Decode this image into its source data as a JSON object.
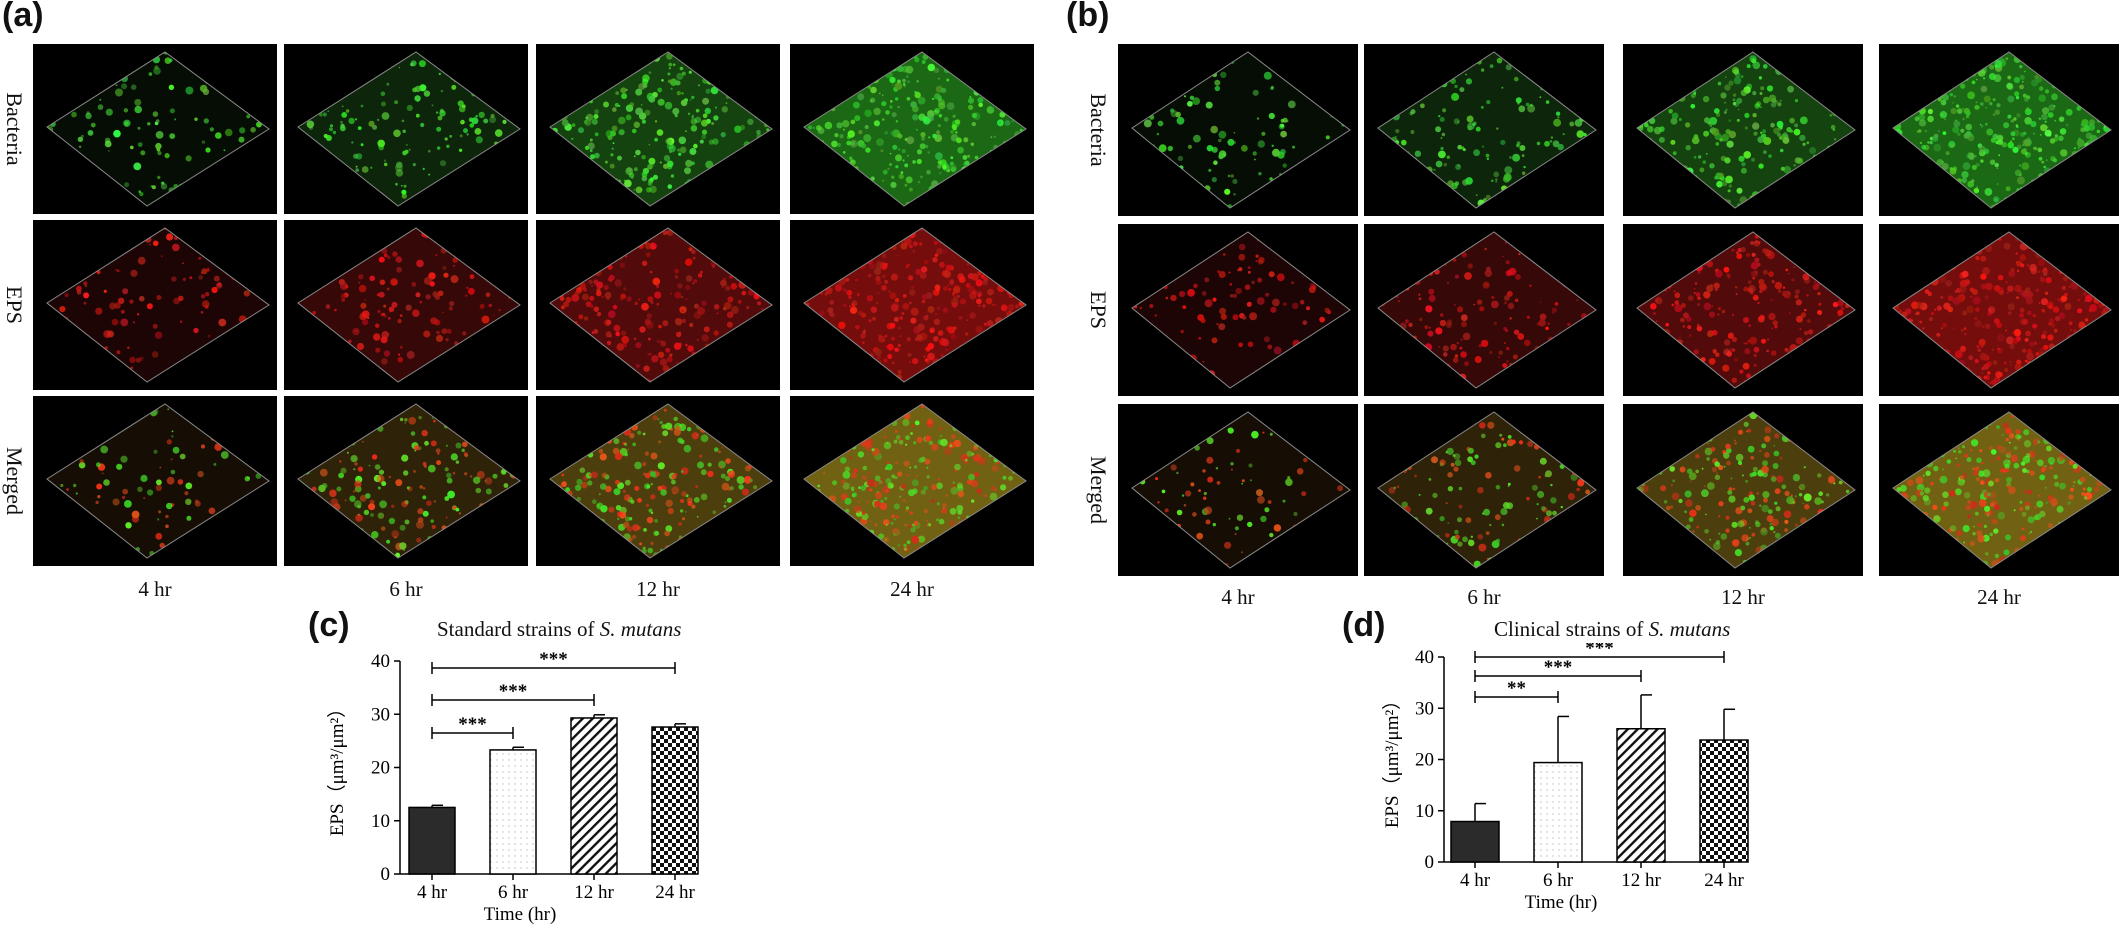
{
  "panels": [
    {
      "letter": "(a)",
      "rows": [
        "Bacteria",
        "EPS",
        "Merged"
      ],
      "columns": [
        "4 hr",
        "6 hr",
        "12 hr",
        "24 hr"
      ]
    },
    {
      "letter": "(b)",
      "rows": [
        "Bacteria",
        "EPS",
        "Merged"
      ],
      "columns": [
        "4 hr",
        "6 hr",
        "12 hr",
        "24 hr"
      ]
    }
  ],
  "chart_data": [
    {
      "type": "bar",
      "letter": "(c)",
      "title_prefix": "Standard strains of ",
      "title_species": "S. mutans",
      "categories": [
        "4 hr",
        "6 hr",
        "12 hr",
        "24 hr"
      ],
      "values": [
        12.5,
        23.3,
        29.3,
        27.6
      ],
      "errors": [
        0.4,
        0.5,
        0.6,
        0.6
      ],
      "patterns": [
        "solid",
        "dots",
        "diagonal",
        "checker"
      ],
      "xlabel": "Time (hr)",
      "ylabel": "EPS（μm³/μm²）",
      "ylim": [
        0,
        40
      ],
      "yticks": [
        0,
        10,
        20,
        30,
        40
      ],
      "significance": [
        {
          "from": 0,
          "to": 1,
          "label": "***"
        },
        {
          "from": 0,
          "to": 2,
          "label": "***"
        },
        {
          "from": 0,
          "to": 3,
          "label": "***"
        }
      ]
    },
    {
      "type": "bar",
      "letter": "(d)",
      "title_prefix": "Clinical strains of ",
      "title_species": "S. mutans",
      "categories": [
        "4 hr",
        "6 hr",
        "12 hr",
        "24 hr"
      ],
      "values": [
        7.9,
        19.4,
        26.0,
        23.8
      ],
      "errors": [
        3.5,
        9.0,
        6.6,
        6.0
      ],
      "patterns": [
        "solid",
        "dots",
        "diagonal",
        "checker"
      ],
      "xlabel": "Time (hr)",
      "ylabel": "EPS（μm³/μm²）",
      "ylim": [
        0,
        40
      ],
      "yticks": [
        0,
        10,
        20,
        30,
        40
      ],
      "significance": [
        {
          "from": 0,
          "to": 1,
          "label": "**"
        },
        {
          "from": 0,
          "to": 2,
          "label": "***"
        },
        {
          "from": 0,
          "to": 3,
          "label": "***"
        }
      ]
    }
  ]
}
